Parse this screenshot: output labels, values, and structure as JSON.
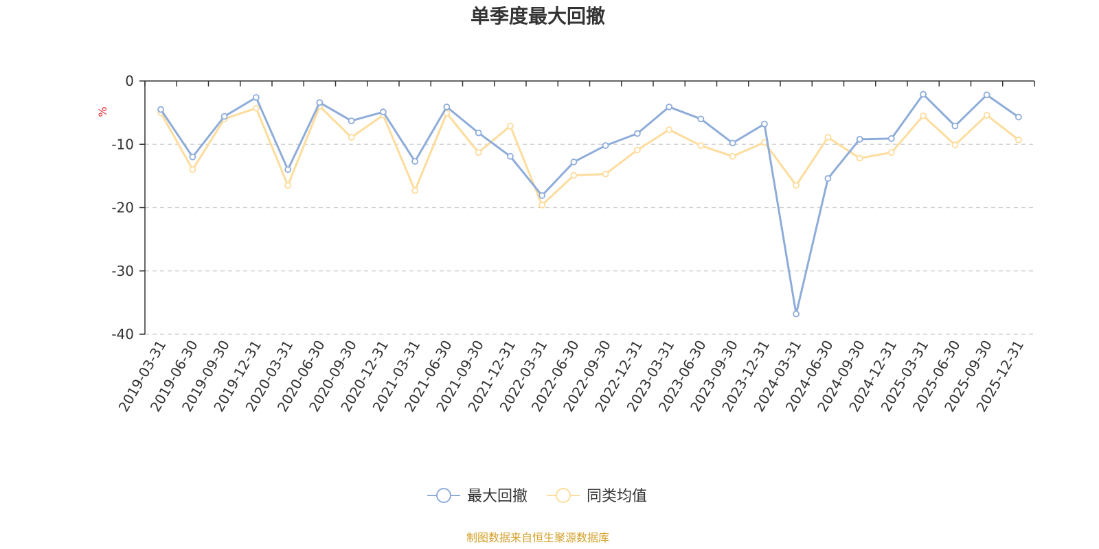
{
  "chart_data": {
    "type": "line",
    "title": "单季度最大回撤",
    "ylabel": "%",
    "ylim": [
      -40,
      0
    ],
    "yticks": [
      0,
      -10,
      -20,
      -30,
      -40
    ],
    "grid": true,
    "legend_position": "bottom-center",
    "categories": [
      "2019-03-31",
      "2019-06-30",
      "2019-09-30",
      "2019-12-31",
      "2020-03-31",
      "2020-06-30",
      "2020-09-30",
      "2020-12-31",
      "2021-03-31",
      "2021-06-30",
      "2021-09-30",
      "2021-12-31",
      "2022-03-31",
      "2022-06-30",
      "2022-09-30",
      "2022-12-31",
      "2023-03-31",
      "2023-06-30",
      "2023-09-30",
      "2023-12-31",
      "2024-03-31",
      "2024-06-30",
      "2024-09-30",
      "2024-12-31",
      "2025-03-31",
      "2025-06-30",
      "2025-09-30",
      "2025-12-31"
    ],
    "series": [
      {
        "name": "最大回撤",
        "color": "#8eacd9",
        "values": [
          -4.5,
          -12.0,
          -5.6,
          -2.6,
          -14.0,
          -3.4,
          -6.3,
          -4.9,
          -12.7,
          -4.1,
          -8.2,
          -11.9,
          -18.1,
          -12.8,
          -10.2,
          -8.3,
          -4.1,
          -6.0,
          -9.8,
          -6.8,
          -36.8,
          -15.4,
          -9.2,
          -9.1,
          -2.1,
          -7.1,
          -2.2,
          -5.7
        ]
      },
      {
        "name": "同类均值",
        "color": "#fddc9c",
        "values": [
          -5.0,
          -14.0,
          -6.0,
          -4.3,
          -16.5,
          -4.0,
          -8.9,
          -5.4,
          -17.3,
          -5.1,
          -11.3,
          -7.1,
          -19.6,
          -14.9,
          -14.7,
          -10.9,
          -7.7,
          -10.2,
          -11.9,
          -9.7,
          -16.5,
          -8.9,
          -12.2,
          -11.3,
          -5.5,
          -10.1,
          -5.4,
          -9.3
        ]
      }
    ]
  },
  "source": "制图数据来自恒生聚源数据库",
  "colors": {
    "axis": "#333333",
    "grid": "#cccccc",
    "unit": "#e8202a",
    "source": "#d4a22d"
  }
}
